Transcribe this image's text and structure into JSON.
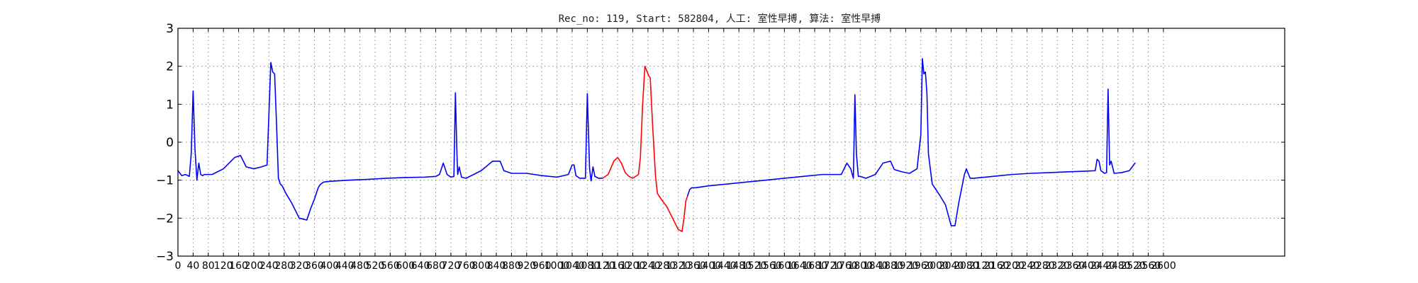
{
  "chart_data": {
    "type": "line",
    "title": "Rec_no: 119, Start: 582804, 人工: 室性早搏, 算法: 室性早搏",
    "xlabel": "",
    "ylabel": "",
    "xlim": [
      0,
      2920
    ],
    "ylim": [
      -3,
      3
    ],
    "grid": true,
    "ytick_labels": [
      "3",
      "2",
      "1",
      "0",
      "−1",
      "−2",
      "−3"
    ],
    "ytick_values": [
      3,
      2,
      1,
      0,
      -1,
      -2,
      -3
    ],
    "xtick_labels": [
      "0",
      "40",
      "80",
      "120",
      "160",
      "200",
      "240",
      "280",
      "320",
      "360",
      "400",
      "440",
      "480",
      "520",
      "560",
      "600",
      "640",
      "680",
      "720",
      "760",
      "800",
      "840",
      "880",
      "920",
      "960",
      "1000",
      "1040",
      "1080",
      "1120",
      "1160",
      "1200",
      "1240",
      "1280",
      "1320",
      "1360",
      "1400",
      "1440",
      "1480",
      "1520",
      "1560",
      "1600",
      "1640",
      "1680",
      "1720",
      "1760",
      "1800",
      "1840",
      "1880",
      "1920",
      "1960",
      "2000",
      "2040",
      "2080",
      "2120",
      "2160",
      "2200",
      "2240",
      "2280",
      "2320",
      "2360",
      "2400",
      "2440",
      "2480",
      "2520",
      "2560",
      "2600"
    ],
    "xtick_values": [
      0,
      40,
      80,
      120,
      160,
      200,
      240,
      280,
      320,
      360,
      400,
      440,
      480,
      520,
      560,
      600,
      640,
      680,
      720,
      760,
      800,
      840,
      880,
      920,
      960,
      1000,
      1040,
      1080,
      1120,
      1160,
      1200,
      1240,
      1280,
      1320,
      1360,
      1400,
      1440,
      1480,
      1520,
      1560,
      1600,
      1640,
      1680,
      1720,
      1760,
      1800,
      1840,
      1880,
      1920,
      1960,
      2000,
      2040,
      2080,
      2120,
      2160,
      2200,
      2240,
      2280,
      2320,
      2360,
      2400,
      2440,
      2480,
      2520,
      2560,
      2600
    ],
    "series": [
      {
        "color": "#0000ff",
        "x": [
          0,
          10,
          20,
          30,
          35,
          40,
          45,
          50,
          55,
          60,
          65,
          70,
          90,
          120,
          150,
          165,
          180,
          200,
          220,
          235,
          245,
          250,
          255,
          260,
          265,
          270,
          275,
          285,
          300,
          320,
          340,
          345,
          350,
          360,
          370,
          375,
          380,
          385,
          400,
          450,
          500,
          550,
          600,
          650,
          680,
          690,
          695,
          700,
          710,
          720,
          728,
          732,
          736,
          738,
          742,
          748,
          760,
          800,
          830,
          850,
          860,
          880,
          920,
          960,
          1000,
          1030,
          1040,
          1045,
          1050,
          1060,
          1075,
          1080,
          1086,
          1090,
          1095,
          1100,
          1110,
          1120
        ],
        "y": [
          -0.75,
          -0.88,
          -0.85,
          -0.9,
          -0.3,
          1.35,
          -0.2,
          -1.0,
          -0.55,
          -0.85,
          -0.88,
          -0.85,
          -0.85,
          -0.7,
          -0.4,
          -0.35,
          -0.65,
          -0.7,
          -0.65,
          -0.6,
          2.1,
          1.85,
          1.8,
          0.5,
          -0.95,
          -1.1,
          -1.15,
          -1.35,
          -1.6,
          -2.0,
          -2.05,
          -1.9,
          -1.75,
          -1.5,
          -1.2,
          -1.12,
          -1.08,
          -1.05,
          -1.03,
          -1.0,
          -0.98,
          -0.95,
          -0.93,
          -0.92,
          -0.9,
          -0.85,
          -0.7,
          -0.55,
          -0.85,
          -0.92,
          -0.9,
          1.3,
          -0.3,
          -0.85,
          -0.65,
          -0.92,
          -0.95,
          -0.75,
          -0.5,
          -0.5,
          -0.75,
          -0.82,
          -0.82,
          -0.88,
          -0.92,
          -0.85,
          -0.6,
          -0.6,
          -0.88,
          -0.95,
          -0.95,
          1.28,
          -0.7,
          -1.02,
          -0.65,
          -0.9,
          -0.95,
          -0.95
        ]
      },
      {
        "color": "#ff0000",
        "x": [
          1120,
          1135,
          1150,
          1160,
          1170,
          1180,
          1190,
          1200,
          1215,
          1220,
          1226,
          1232,
          1238,
          1242,
          1246,
          1252,
          1260,
          1265,
          1275,
          1290,
          1305,
          1320,
          1330,
          1335,
          1340,
          1345
        ],
        "y": [
          -0.95,
          -0.85,
          -0.5,
          -0.4,
          -0.55,
          -0.8,
          -0.9,
          -0.95,
          -0.85,
          -0.4,
          1.0,
          2.0,
          1.85,
          1.75,
          1.7,
          0.5,
          -0.9,
          -1.35,
          -1.5,
          -1.7,
          -2.0,
          -2.3,
          -2.35,
          -2.0,
          -1.55,
          -1.4
        ]
      },
      {
        "color": "#0000ff",
        "x": [
          1345,
          1350,
          1355,
          1365,
          1400,
          1450,
          1500,
          1550,
          1600,
          1650,
          1700,
          1750,
          1765,
          1775,
          1782,
          1786,
          1790,
          1795,
          1800,
          1815,
          1840,
          1860,
          1880,
          1890,
          1910,
          1930,
          1950,
          1960,
          1964,
          1968,
          1972,
          1976,
          1980,
          1990,
          2000,
          2010,
          2025,
          2040,
          2050,
          2060,
          2075,
          2080,
          2090,
          2100,
          2150,
          2200,
          2250,
          2300,
          2350,
          2400,
          2420,
          2425,
          2430,
          2435,
          2445,
          2450,
          2454,
          2458,
          2462,
          2470,
          2490,
          2510,
          2520,
          2525
        ],
        "y": [
          -1.4,
          -1.25,
          -1.2,
          -1.2,
          -1.15,
          -1.1,
          -1.05,
          -1.0,
          -0.95,
          -0.9,
          -0.85,
          -0.85,
          -0.55,
          -0.7,
          -0.95,
          1.25,
          -0.3,
          -0.9,
          -0.9,
          -0.95,
          -0.85,
          -0.55,
          -0.5,
          -0.72,
          -0.78,
          -0.82,
          -0.7,
          0.2,
          2.2,
          1.8,
          1.85,
          1.3,
          -0.3,
          -1.1,
          -1.25,
          -1.4,
          -1.65,
          -2.2,
          -2.2,
          -1.6,
          -0.85,
          -0.7,
          -0.95,
          -0.95,
          -0.9,
          -0.85,
          -0.82,
          -0.8,
          -0.78,
          -0.76,
          -0.75,
          -0.45,
          -0.5,
          -0.75,
          -0.82,
          -0.8,
          1.4,
          -0.6,
          -0.5,
          -0.82,
          -0.8,
          -0.75,
          -0.62,
          -0.55
        ]
      }
    ]
  }
}
